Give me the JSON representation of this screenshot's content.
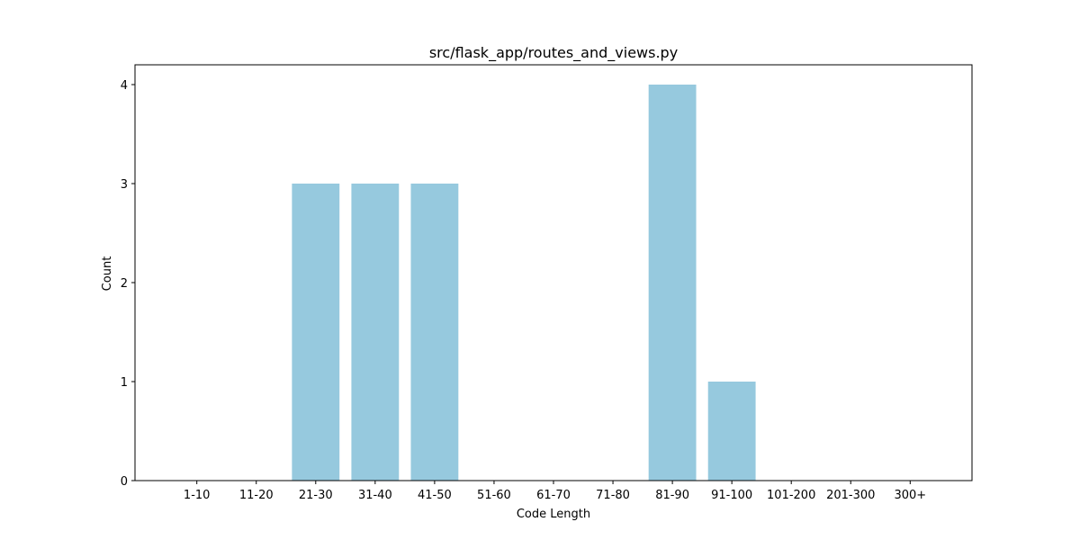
{
  "chart_data": {
    "type": "bar",
    "title": "src/flask_app/routes_and_views.py",
    "xlabel": "Code Length",
    "ylabel": "Count",
    "categories": [
      "1-10",
      "11-20",
      "21-30",
      "31-40",
      "41-50",
      "51-60",
      "61-70",
      "71-80",
      "81-90",
      "91-100",
      "101-200",
      "201-300",
      "300+"
    ],
    "values": [
      0,
      0,
      3,
      3,
      3,
      0,
      0,
      0,
      4,
      1,
      0,
      0,
      0
    ],
    "ylim": [
      0,
      4.2
    ],
    "yticks": [
      0,
      1,
      2,
      3,
      4
    ],
    "grid": false,
    "legend": "none",
    "bar_color": "#96c9de"
  }
}
